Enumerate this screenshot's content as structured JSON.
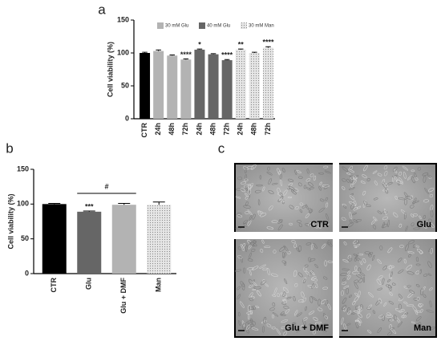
{
  "panel_labels": [
    "a",
    "b",
    "c"
  ],
  "chart_data": [
    {
      "type": "bar",
      "ylabel": "Cell viability (%)",
      "categories": [
        "CTR",
        "24h",
        "48h",
        "72h",
        "24h",
        "48h",
        "72h",
        "24h",
        "48h",
        "72h"
      ],
      "values": [
        100,
        103,
        96,
        90,
        105,
        98,
        89,
        105,
        100,
        108
      ],
      "errors": [
        1,
        1.5,
        1,
        1,
        1,
        1,
        1,
        1,
        1,
        1.5
      ],
      "bar_colors": [
        "#000000",
        "#b3b3b3",
        "#b3b3b3",
        "#b3b3b3",
        "#666666",
        "#666666",
        "#666666",
        "#e0e0e0",
        "#e0e0e0",
        "#e0e0e0"
      ],
      "bar_patterns": [
        null,
        null,
        null,
        null,
        null,
        null,
        null,
        "dots",
        "dots",
        "dots"
      ],
      "annotations": [
        null,
        null,
        null,
        "****",
        "*",
        null,
        "****",
        "**",
        null,
        "****"
      ],
      "legend": [
        {
          "name": "30 mM Glu",
          "color": "#b3b3b3"
        },
        {
          "name": "40 mM Glu",
          "color": "#666666"
        },
        {
          "name": "30 mM Man",
          "color": "#e0e0e0",
          "pattern": "dots"
        }
      ],
      "ylim": [
        0,
        150
      ],
      "yticks": [
        0,
        50,
        100,
        150
      ]
    },
    {
      "type": "bar",
      "ylabel": "Cell viability (%)",
      "categories": [
        "CTR",
        "Glu",
        "Glu + DMF",
        "Man"
      ],
      "values": [
        100,
        89,
        99,
        99
      ],
      "errors": [
        1,
        1,
        2,
        4
      ],
      "bar_colors": [
        "#000000",
        "#666666",
        "#b3b3b3",
        "#e0e0e0"
      ],
      "bar_patterns": [
        null,
        null,
        null,
        "dots"
      ],
      "annotations": [
        null,
        "***",
        null,
        null
      ],
      "comparison": {
        "label": "#",
        "between": [
          1,
          2
        ]
      },
      "ylim": [
        0,
        150
      ],
      "yticks": [
        0,
        50,
        100,
        150
      ]
    }
  ],
  "micrographs": {
    "labels": [
      "CTR",
      "Glu",
      "Glu + DMF",
      "Man"
    ]
  }
}
